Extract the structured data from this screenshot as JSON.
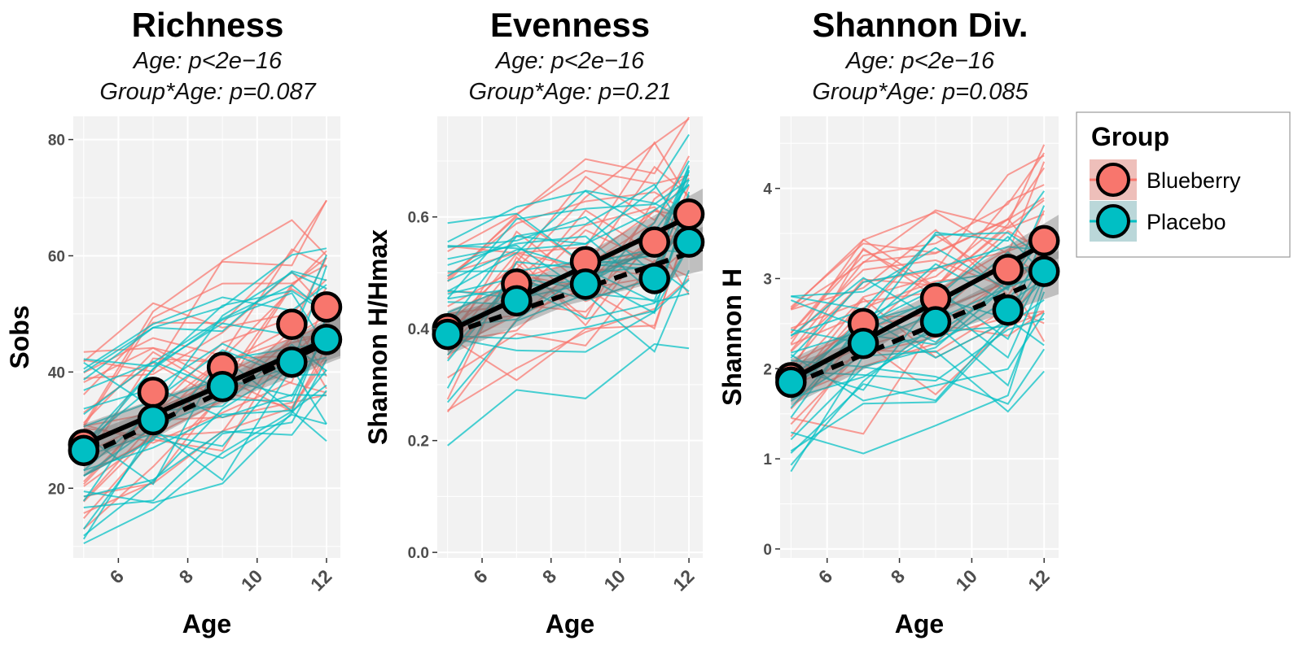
{
  "chart_data": [
    {
      "type": "line",
      "panel": "richness",
      "title": "Richness",
      "subtitle_age": "Age: p<2e−16",
      "subtitle_group": "Group*Age: p=0.087",
      "xlabel": "Age",
      "ylabel": "Sobs",
      "xlim": [
        4.7,
        12.4
      ],
      "ylim": [
        8,
        84
      ],
      "xticks": [
        6,
        8,
        10,
        12
      ],
      "yticks": [
        20,
        40,
        60,
        80
      ],
      "x": [
        5,
        7,
        9,
        11,
        12
      ],
      "series": [
        {
          "name": "Blueberry",
          "values": [
            27.5,
            36.5,
            40.8,
            48.2,
            51.2
          ],
          "fit": [
            27.5,
            45.5
          ],
          "line": "solid"
        },
        {
          "name": "Placebo",
          "values": [
            26.5,
            31.8,
            37.5,
            41.7,
            45.6
          ],
          "fit": [
            25.5,
            45.0
          ],
          "line": "dashed"
        }
      ]
    },
    {
      "type": "line",
      "panel": "evenness",
      "title": "Evenness",
      "subtitle_age": "Age: p<2e−16",
      "subtitle_group": "Group*Age: p=0.21",
      "xlabel": "Age",
      "ylabel": "Shannon H/Hmax",
      "xlim": [
        4.7,
        12.4
      ],
      "ylim": [
        -0.01,
        0.78
      ],
      "xticks": [
        6,
        8,
        10,
        12
      ],
      "yticks": [
        0.0,
        0.2,
        0.4,
        0.6
      ],
      "ytick_labels": [
        "0.0",
        "0.2",
        "0.4",
        "0.6"
      ],
      "x": [
        5,
        7,
        9,
        11,
        12
      ],
      "series": [
        {
          "name": "Blueberry",
          "values": [
            0.4,
            0.48,
            0.52,
            0.555,
            0.605
          ],
          "fit": [
            0.395,
            0.6
          ],
          "line": "solid"
        },
        {
          "name": "Placebo",
          "values": [
            0.39,
            0.45,
            0.48,
            0.49,
            0.555
          ],
          "fit": [
            0.39,
            0.535
          ],
          "line": "dashed"
        }
      ]
    },
    {
      "type": "line",
      "panel": "shannon",
      "title": "Shannon Div.",
      "subtitle_age": "Age: p<2e−16",
      "subtitle_group": "Group*Age: p=0.085",
      "xlabel": "Age",
      "ylabel": "Shannon H",
      "xlim": [
        4.7,
        12.4
      ],
      "ylim": [
        -0.1,
        4.8
      ],
      "xticks": [
        6,
        8,
        10,
        12
      ],
      "yticks": [
        0,
        1,
        2,
        3,
        4
      ],
      "x": [
        5,
        7,
        9,
        11,
        12
      ],
      "series": [
        {
          "name": "Blueberry",
          "values": [
            1.9,
            2.5,
            2.78,
            3.1,
            3.42
          ],
          "fit": [
            1.88,
            3.38
          ],
          "line": "solid"
        },
        {
          "name": "Placebo",
          "values": [
            1.85,
            2.28,
            2.52,
            2.65,
            3.08
          ],
          "fit": [
            1.82,
            3.0
          ],
          "line": "dashed"
        }
      ]
    }
  ],
  "legend": {
    "title": "Group",
    "items": [
      {
        "label": "Blueberry",
        "color": "#F8766D"
      },
      {
        "label": "Placebo",
        "color": "#00BFC4"
      }
    ]
  },
  "colors": {
    "Blueberry": "#F8766D",
    "Placebo": "#00BFC4",
    "panel_bg": "#F2F2F2",
    "grid": "#FFFFFF"
  }
}
